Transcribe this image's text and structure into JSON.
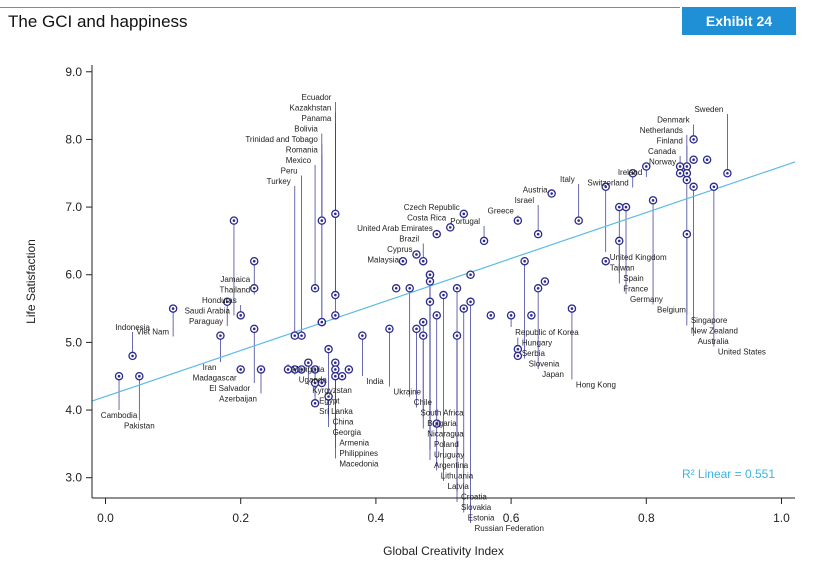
{
  "header": {
    "title": "The GCI and happiness",
    "exhibit": "Exhibit 24"
  },
  "colors": {
    "accent": "#1f8fd6",
    "fit_line": "#5bbbe6",
    "point": "#2c2a8c",
    "leader": "#2c2a8c"
  },
  "chart_data": {
    "type": "scatter",
    "xlabel": "Global Creativity Index",
    "ylabel": "Life Satisfaction",
    "xlim": [
      -0.02,
      1.02
    ],
    "ylim": [
      2.7,
      9.1
    ],
    "xticks": [
      "0.0",
      "0.2",
      "0.4",
      "0.6",
      "0.8",
      "1.0"
    ],
    "yticks": [
      "3.0",
      "4.0",
      "5.0",
      "6.0",
      "7.0",
      "8.0",
      "9.0"
    ],
    "grid": false,
    "trendline": {
      "intercept": 4.2,
      "slope": 3.4,
      "label": "R² Linear = 0.551"
    },
    "points": [
      {
        "name": "Denmark",
        "x": 0.87,
        "y": 8.0
      },
      {
        "name": "Finland",
        "x": 0.86,
        "y": 7.6
      },
      {
        "name": "Norway",
        "x": 0.85,
        "y": 7.6
      },
      {
        "name": "Netherlands",
        "x": 0.86,
        "y": 7.5
      },
      {
        "name": "Ireland",
        "x": 0.8,
        "y": 7.6
      },
      {
        "name": "Switzerland",
        "x": 0.78,
        "y": 7.5
      },
      {
        "name": "United Kingdom",
        "x": 0.74,
        "y": 7.3
      },
      {
        "name": "Austria",
        "x": 0.66,
        "y": 7.2
      },
      {
        "name": "Greece",
        "x": 0.61,
        "y": 6.8
      },
      {
        "name": "Israel",
        "x": 0.64,
        "y": 6.6
      },
      {
        "name": "Italy",
        "x": 0.7,
        "y": 6.8
      },
      {
        "name": "Portugal",
        "x": 0.56,
        "y": 6.5
      },
      {
        "name": "Czech Republic",
        "x": 0.53,
        "y": 6.9
      },
      {
        "name": "Costa Rica",
        "x": 0.51,
        "y": 6.7
      },
      {
        "name": "United Arab Emirates",
        "x": 0.49,
        "y": 6.6
      },
      {
        "name": "Cyprus",
        "x": 0.46,
        "y": 6.3
      },
      {
        "name": "Brazil",
        "x": 0.47,
        "y": 6.2
      },
      {
        "name": "Malaysia",
        "x": 0.44,
        "y": 6.2
      },
      {
        "name": "Poland",
        "x": 0.48,
        "y": 6.0
      },
      {
        "name": "Chile",
        "x": 0.45,
        "y": 5.8
      },
      {
        "name": "Panama",
        "x": 0.34,
        "y": 6.9
      },
      {
        "name": "Romania",
        "x": 0.32,
        "y": 6.8
      },
      {
        "name": "Kazakhstan",
        "x": 0.34,
        "y": 5.7
      },
      {
        "name": "Mexico",
        "x": 0.31,
        "y": 5.8
      },
      {
        "name": "Ecuador",
        "x": 0.34,
        "y": 5.4
      },
      {
        "name": "Trinidad and Tobago",
        "x": 0.32,
        "y": 5.3
      },
      {
        "name": "Bolivia",
        "x": 0.32,
        "y": 5.3
      },
      {
        "name": "Peru",
        "x": 0.29,
        "y": 5.1
      },
      {
        "name": "Turkey",
        "x": 0.28,
        "y": 5.1
      },
      {
        "name": "Thailand",
        "x": 0.22,
        "y": 6.2
      },
      {
        "name": "Jamaica",
        "x": 0.22,
        "y": 5.8
      },
      {
        "name": "Saudi Arabia",
        "x": 0.19,
        "y": 6.8
      },
      {
        "name": "El Salvador",
        "x": 0.22,
        "y": 5.2
      },
      {
        "name": "Honduras",
        "x": 0.2,
        "y": 5.4
      },
      {
        "name": "Paraguay",
        "x": 0.18,
        "y": 5.6
      },
      {
        "name": "Iran",
        "x": 0.17,
        "y": 5.1
      },
      {
        "name": "Viet Nam",
        "x": 0.1,
        "y": 5.5
      },
      {
        "name": "Indonesia",
        "x": 0.04,
        "y": 4.8
      },
      {
        "name": "Pakistan",
        "x": 0.05,
        "y": 4.5
      },
      {
        "name": "Cambodia",
        "x": 0.02,
        "y": 4.5
      },
      {
        "name": "India",
        "x": 0.38,
        "y": 5.1
      },
      {
        "name": "China",
        "x": 0.33,
        "y": 4.9
      },
      {
        "name": "Armenia",
        "x": 0.34,
        "y": 4.7
      },
      {
        "name": "Philippines",
        "x": 0.34,
        "y": 4.6
      },
      {
        "name": "Macedonia",
        "x": 0.34,
        "y": 4.5
      },
      {
        "name": "Georgia",
        "x": 0.33,
        "y": 4.2
      },
      {
        "name": "Egypt",
        "x": 0.31,
        "y": 4.6
      },
      {
        "name": "Sri Lanka",
        "x": 0.31,
        "y": 4.4
      },
      {
        "name": "Kyrgyzstan",
        "x": 0.3,
        "y": 4.7
      },
      {
        "name": "Uganda",
        "x": 0.28,
        "y": 4.6
      },
      {
        "name": "Mongolia",
        "x": 0.27,
        "y": 4.6
      },
      {
        "name": "Azerbaijan",
        "x": 0.23,
        "y": 4.6
      },
      {
        "name": "Madagascar",
        "x": 0.2,
        "y": 4.6
      },
      {
        "name": "Croatia",
        "x": 0.52,
        "y": 5.8
      },
      {
        "name": "Russian Federation",
        "x": 0.54,
        "y": 5.6
      },
      {
        "name": "Estonia",
        "x": 0.53,
        "y": 5.5
      },
      {
        "name": "Latvia",
        "x": 0.5,
        "y": 5.7
      },
      {
        "name": "Uruguay",
        "x": 0.48,
        "y": 6.0
      },
      {
        "name": "Argentina",
        "x": 0.48,
        "y": 5.6
      },
      {
        "name": "Lithuania",
        "x": 0.49,
        "y": 5.4
      },
      {
        "name": "Slovakia",
        "x": 0.52,
        "y": 5.1
      },
      {
        "name": "Bulgaria",
        "x": 0.47,
        "y": 5.3
      },
      {
        "name": "Nicaragua",
        "x": 0.47,
        "y": 5.1
      },
      {
        "name": "South Africa",
        "x": 0.46,
        "y": 5.2
      },
      {
        "name": "Ukraine",
        "x": 0.42,
        "y": 5.2
      },
      {
        "name": "Japan",
        "x": 0.64,
        "y": 5.8
      },
      {
        "name": "Slovenia",
        "x": 0.62,
        "y": 6.2
      },
      {
        "name": "Republic of Korea",
        "x": 0.6,
        "y": 5.4
      },
      {
        "name": "Hungary",
        "x": 0.61,
        "y": 4.9
      },
      {
        "name": "Serbia",
        "x": 0.61,
        "y": 4.8
      },
      {
        "name": "Hong Kong",
        "x": 0.69,
        "y": 5.5
      },
      {
        "name": "Taiwan",
        "x": 0.74,
        "y": 6.2
      },
      {
        "name": "Spain",
        "x": 0.76,
        "y": 6.5
      },
      {
        "name": "Germany",
        "x": 0.77,
        "y": 7.0
      },
      {
        "name": "France",
        "x": 0.76,
        "y": 7.0
      },
      {
        "name": "Singapore",
        "x": 0.86,
        "y": 6.6
      },
      {
        "name": "Australia",
        "x": 0.87,
        "y": 7.3
      },
      {
        "name": "New Zealand",
        "x": 0.86,
        "y": 7.4
      },
      {
        "name": "Canada",
        "x": 0.85,
        "y": 7.5
      },
      {
        "name": "Belgium",
        "x": 0.81,
        "y": 7.1
      },
      {
        "name": "Sweden",
        "x": 0.92,
        "y": 7.5
      },
      {
        "name": "United States",
        "x": 0.9,
        "y": 7.3
      },
      {
        "name": "",
        "x": 0.89,
        "y": 7.7
      },
      {
        "name": "",
        "x": 0.87,
        "y": 7.7
      },
      {
        "name": "",
        "x": 0.43,
        "y": 5.8
      },
      {
        "name": "",
        "x": 0.48,
        "y": 5.9
      },
      {
        "name": "",
        "x": 0.49,
        "y": 3.8
      },
      {
        "name": "",
        "x": 0.35,
        "y": 4.5
      },
      {
        "name": "",
        "x": 0.32,
        "y": 4.4
      },
      {
        "name": "",
        "x": 0.29,
        "y": 4.6
      },
      {
        "name": "",
        "x": 0.36,
        "y": 4.6
      },
      {
        "name": "",
        "x": 0.31,
        "y": 4.1
      },
      {
        "name": "",
        "x": 0.54,
        "y": 6.0
      },
      {
        "name": "",
        "x": 0.57,
        "y": 5.4
      },
      {
        "name": "",
        "x": 0.63,
        "y": 5.4
      },
      {
        "name": "",
        "x": 0.65,
        "y": 5.9
      }
    ]
  }
}
